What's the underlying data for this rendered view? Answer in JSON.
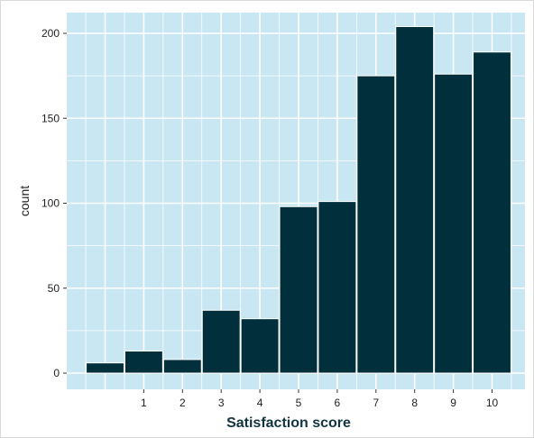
{
  "chart_data": {
    "type": "bar",
    "x": [
      0,
      1,
      2,
      3,
      4,
      5,
      6,
      7,
      8,
      9,
      10
    ],
    "values": [
      6,
      13,
      8,
      37,
      32,
      98,
      101,
      175,
      204,
      176,
      189
    ],
    "x_tick_labels": [
      "1",
      "2",
      "3",
      "4",
      "5",
      "6",
      "7",
      "8",
      "9",
      "10"
    ],
    "y_ticks": [
      0,
      50,
      100,
      150,
      200
    ],
    "y_tick_labels": [
      "0",
      "50",
      "100",
      "150",
      "200"
    ],
    "xlabel": "Satisfaction score",
    "ylabel": "count",
    "ylim": [
      0,
      210
    ],
    "grid": true,
    "colors": {
      "panel_background": "#c8e7f3",
      "grid": "#ffffff",
      "bar_fill": "#022f3c",
      "bar_outline": "#ffffff",
      "axis_text": "#1f1f1f"
    }
  }
}
